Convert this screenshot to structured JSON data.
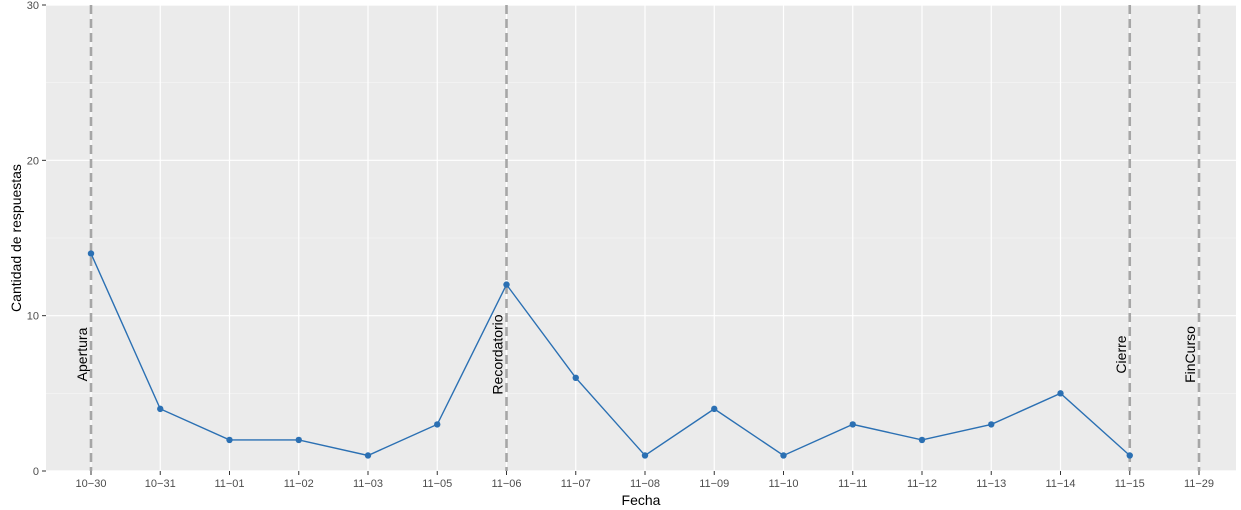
{
  "chart_data": {
    "type": "line",
    "xlabel": "Fecha",
    "ylabel": "Cantidad de respuestas",
    "categories": [
      "10−30",
      "10−31",
      "11−01",
      "11−02",
      "11−03",
      "11−05",
      "11−06",
      "11−07",
      "11−08",
      "11−09",
      "11−10",
      "11−11",
      "11−12",
      "11−13",
      "11−14",
      "11−15",
      "11−29"
    ],
    "values": [
      14,
      4,
      2,
      2,
      1,
      3,
      12,
      6,
      1,
      4,
      1,
      3,
      2,
      3,
      5,
      1,
      null
    ],
    "ylim": [
      0,
      30
    ],
    "yticks": [
      0,
      10,
      20,
      30
    ],
    "grid": true,
    "series_color": "#2b70b3",
    "event_line_color": "#a6a6a6",
    "panel_color": "#ebebeb",
    "events": [
      {
        "label": "Apertura",
        "category": "10−30"
      },
      {
        "label": "Recordatorio",
        "category": "11−06"
      },
      {
        "label": "Cierre",
        "category": "11−15"
      },
      {
        "label": "FinCurso",
        "category": "11−29"
      }
    ]
  }
}
